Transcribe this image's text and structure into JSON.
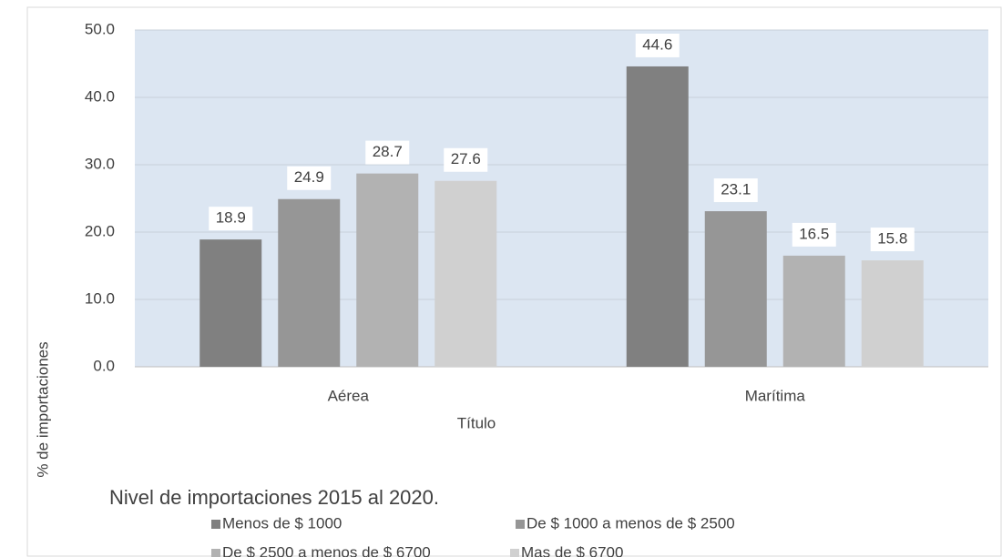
{
  "chart_data": {
    "type": "bar",
    "categories": [
      "Aérea",
      "Marítima"
    ],
    "series": [
      {
        "name": "Menos de $ 1000",
        "color": "#808080",
        "values": [
          18.9,
          44.6
        ]
      },
      {
        "name": "De $ 1000 a menos de $ 2500",
        "color": "#969696",
        "values": [
          24.9,
          23.1
        ]
      },
      {
        "name": "De $ 2500 a menos de $ 6700",
        "color": "#b2b2b2",
        "values": [
          28.7,
          16.5
        ]
      },
      {
        "name": "Mas de $ 6700",
        "color": "#d0d0d0",
        "values": [
          27.6,
          15.8
        ]
      }
    ],
    "xlabel": "Título",
    "ylabel": "% de importaciones",
    "legend_title": "Nivel de importaciones 2015 al 2020.",
    "ylim": [
      0,
      50
    ],
    "yticks": [
      {
        "value": 0,
        "label": "0.0"
      },
      {
        "value": 10,
        "label": "10.0"
      },
      {
        "value": 20,
        "label": "20.0"
      },
      {
        "value": 30,
        "label": "30.0"
      },
      {
        "value": 40,
        "label": "40.0"
      },
      {
        "value": 50,
        "label": "50.0"
      }
    ],
    "grid": true
  }
}
